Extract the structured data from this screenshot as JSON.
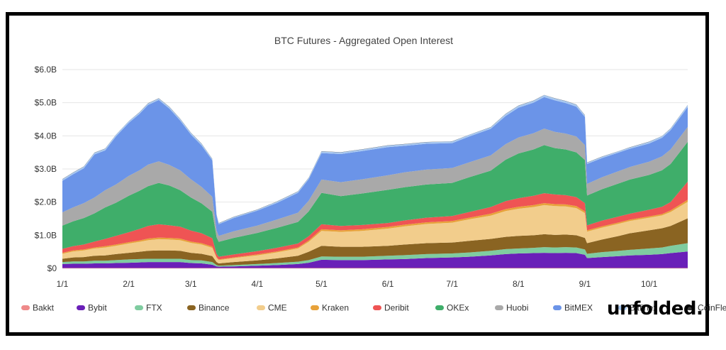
{
  "chart_data": {
    "type": "area",
    "title": "BTC Futures - Aggregated Open Interest",
    "xlabel": "",
    "ylabel": "",
    "stacked": true,
    "ylim": [
      0,
      6.2
    ],
    "y_unit": "billion USD",
    "y_ticks": [
      "$0",
      "$1.0B",
      "$2.0B",
      "$3.0B",
      "$4.0B",
      "$5.0B",
      "$6.0B"
    ],
    "y_tick_values": [
      0,
      1,
      2,
      3,
      4,
      5,
      6
    ],
    "x_ticks": [
      "1/1",
      "2/1",
      "3/1",
      "4/1",
      "5/1",
      "6/1",
      "7/1",
      "8/1",
      "9/1",
      "10/1"
    ],
    "x_tick_days": [
      0,
      31,
      60,
      91,
      121,
      152,
      182,
      213,
      244,
      274
    ],
    "x_days": [
      0,
      5,
      10,
      15,
      20,
      25,
      31,
      36,
      40,
      45,
      50,
      55,
      60,
      65,
      70,
      72,
      73,
      80,
      91,
      100,
      110,
      115,
      121,
      130,
      140,
      152,
      160,
      170,
      182,
      190,
      200,
      207,
      213,
      220,
      225,
      230,
      235,
      240,
      244,
      245,
      252,
      260,
      265,
      274,
      280,
      284,
      292
    ],
    "series": [
      {
        "name": "Bakkt",
        "color": "#ef8a8a",
        "values": [
          0.01,
          0.01,
          0.01,
          0.01,
          0.01,
          0.01,
          0.01,
          0.01,
          0.01,
          0.01,
          0.01,
          0.01,
          0.01,
          0.01,
          0.01,
          0.01,
          0.01,
          0.01,
          0.01,
          0.01,
          0.01,
          0.01,
          0.01,
          0.01,
          0.01,
          0.01,
          0.01,
          0.01,
          0.01,
          0.01,
          0.01,
          0.01,
          0.01,
          0.01,
          0.01,
          0.01,
          0.01,
          0.01,
          0.01,
          0.01,
          0.01,
          0.01,
          0.01,
          0.01,
          0.01,
          0.01,
          0.01
        ]
      },
      {
        "name": "Bybit",
        "color": "#6a1fb8",
        "values": [
          0.12,
          0.13,
          0.13,
          0.14,
          0.14,
          0.15,
          0.16,
          0.17,
          0.18,
          0.18,
          0.18,
          0.18,
          0.15,
          0.14,
          0.1,
          0.05,
          0.04,
          0.05,
          0.07,
          0.09,
          0.12,
          0.16,
          0.25,
          0.24,
          0.24,
          0.26,
          0.27,
          0.3,
          0.32,
          0.34,
          0.38,
          0.42,
          0.44,
          0.45,
          0.46,
          0.45,
          0.46,
          0.45,
          0.4,
          0.3,
          0.33,
          0.36,
          0.38,
          0.4,
          0.42,
          0.45,
          0.5
        ]
      },
      {
        "name": "FTX",
        "color": "#7fcca0",
        "values": [
          0.06,
          0.07,
          0.07,
          0.08,
          0.08,
          0.09,
          0.1,
          0.1,
          0.1,
          0.1,
          0.1,
          0.1,
          0.09,
          0.09,
          0.08,
          0.04,
          0.03,
          0.04,
          0.05,
          0.06,
          0.07,
          0.08,
          0.1,
          0.1,
          0.1,
          0.11,
          0.12,
          0.12,
          0.12,
          0.13,
          0.14,
          0.15,
          0.15,
          0.16,
          0.17,
          0.17,
          0.17,
          0.17,
          0.16,
          0.13,
          0.15,
          0.16,
          0.17,
          0.19,
          0.2,
          0.22,
          0.25
        ]
      },
      {
        "name": "Binance",
        "color": "#8a6422",
        "values": [
          0.1,
          0.12,
          0.13,
          0.15,
          0.16,
          0.18,
          0.2,
          0.22,
          0.24,
          0.25,
          0.25,
          0.24,
          0.22,
          0.2,
          0.18,
          0.09,
          0.07,
          0.09,
          0.11,
          0.14,
          0.18,
          0.25,
          0.32,
          0.3,
          0.3,
          0.3,
          0.32,
          0.33,
          0.33,
          0.35,
          0.36,
          0.37,
          0.38,
          0.38,
          0.39,
          0.38,
          0.38,
          0.37,
          0.35,
          0.32,
          0.38,
          0.45,
          0.5,
          0.55,
          0.58,
          0.6,
          0.75
        ]
      },
      {
        "name": "CME",
        "color": "#f2cd8c",
        "values": [
          0.15,
          0.18,
          0.2,
          0.22,
          0.24,
          0.25,
          0.28,
          0.3,
          0.32,
          0.34,
          0.33,
          0.32,
          0.3,
          0.28,
          0.25,
          0.13,
          0.1,
          0.12,
          0.15,
          0.18,
          0.22,
          0.3,
          0.45,
          0.45,
          0.48,
          0.52,
          0.55,
          0.58,
          0.6,
          0.65,
          0.7,
          0.78,
          0.82,
          0.85,
          0.88,
          0.87,
          0.85,
          0.82,
          0.75,
          0.35,
          0.36,
          0.37,
          0.37,
          0.38,
          0.39,
          0.42,
          0.5
        ]
      },
      {
        "name": "Kraken",
        "color": "#e8a23a",
        "values": [
          0.03,
          0.03,
          0.03,
          0.03,
          0.04,
          0.04,
          0.04,
          0.04,
          0.05,
          0.05,
          0.05,
          0.05,
          0.04,
          0.04,
          0.04,
          0.02,
          0.02,
          0.02,
          0.03,
          0.03,
          0.03,
          0.04,
          0.05,
          0.05,
          0.05,
          0.05,
          0.05,
          0.05,
          0.05,
          0.05,
          0.06,
          0.06,
          0.06,
          0.06,
          0.06,
          0.06,
          0.06,
          0.06,
          0.05,
          0.04,
          0.04,
          0.04,
          0.04,
          0.04,
          0.04,
          0.05,
          0.06
        ]
      },
      {
        "name": "Deribit",
        "color": "#ef5454",
        "values": [
          0.12,
          0.13,
          0.15,
          0.18,
          0.22,
          0.26,
          0.3,
          0.35,
          0.38,
          0.4,
          0.38,
          0.36,
          0.33,
          0.3,
          0.25,
          0.1,
          0.08,
          0.09,
          0.1,
          0.11,
          0.12,
          0.13,
          0.15,
          0.13,
          0.13,
          0.12,
          0.13,
          0.14,
          0.15,
          0.17,
          0.2,
          0.24,
          0.26,
          0.28,
          0.3,
          0.29,
          0.28,
          0.27,
          0.25,
          0.15,
          0.17,
          0.18,
          0.18,
          0.2,
          0.22,
          0.25,
          0.55
        ]
      },
      {
        "name": "OKEx",
        "color": "#3fae6a",
        "values": [
          0.7,
          0.75,
          0.8,
          0.85,
          0.95,
          1,
          1.1,
          1.15,
          1.2,
          1.25,
          1.2,
          1.1,
          1,
          0.9,
          0.8,
          0.5,
          0.45,
          0.5,
          0.55,
          0.6,
          0.65,
          0.75,
          0.95,
          0.9,
          0.95,
          1,
          1,
          1,
          1,
          1.05,
          1.1,
          1.25,
          1.35,
          1.4,
          1.45,
          1.4,
          1.38,
          1.35,
          1.3,
          0.9,
          0.95,
          1,
          1.03,
          1.05,
          1.1,
          1.15,
          1.2
        ]
      },
      {
        "name": "Huobi",
        "color": "#a9a9a9",
        "values": [
          0.4,
          0.42,
          0.45,
          0.48,
          0.52,
          0.55,
          0.6,
          0.62,
          0.65,
          0.65,
          0.62,
          0.6,
          0.55,
          0.5,
          0.45,
          0.2,
          0.18,
          0.2,
          0.22,
          0.25,
          0.28,
          0.32,
          0.4,
          0.42,
          0.43,
          0.44,
          0.45,
          0.45,
          0.45,
          0.45,
          0.46,
          0.47,
          0.48,
          0.49,
          0.5,
          0.49,
          0.48,
          0.48,
          0.45,
          0.35,
          0.36,
          0.37,
          0.38,
          0.4,
          0.42,
          0.44,
          0.45
        ]
      },
      {
        "name": "BitMEX",
        "color": "#6b94e8",
        "values": [
          0.95,
          1,
          1.05,
          1.3,
          1.2,
          1.45,
          1.6,
          1.7,
          1.8,
          1.85,
          1.7,
          1.5,
          1.35,
          1.25,
          1.1,
          0.45,
          0.35,
          0.4,
          0.45,
          0.5,
          0.6,
          0.65,
          0.8,
          0.85,
          0.85,
          0.85,
          0.8,
          0.78,
          0.75,
          0.78,
          0.8,
          0.85,
          0.9,
          0.92,
          0.95,
          0.95,
          0.92,
          0.9,
          0.85,
          0.6,
          0.58,
          0.56,
          0.55,
          0.55,
          0.56,
          0.58,
          0.6
        ]
      },
      {
        "name": "Bitfinex",
        "color": "#a8c8f0",
        "values": [
          0.05,
          0.05,
          0.05,
          0.05,
          0.05,
          0.05,
          0.05,
          0.05,
          0.05,
          0.05,
          0.05,
          0.05,
          0.05,
          0.05,
          0.04,
          0.03,
          0.03,
          0.03,
          0.03,
          0.04,
          0.04,
          0.04,
          0.05,
          0.05,
          0.05,
          0.05,
          0.05,
          0.05,
          0.05,
          0.05,
          0.05,
          0.06,
          0.06,
          0.06,
          0.06,
          0.06,
          0.06,
          0.06,
          0.05,
          0.04,
          0.04,
          0.04,
          0.04,
          0.05,
          0.05,
          0.05,
          0.06
        ]
      },
      {
        "name": "CoinFlex",
        "color": "#333333",
        "values": [
          0.005,
          0.005,
          0.005,
          0.005,
          0.005,
          0.005,
          0.005,
          0.005,
          0.005,
          0.005,
          0.005,
          0.005,
          0.005,
          0.005,
          0.005,
          0.005,
          0.005,
          0.005,
          0.005,
          0.005,
          0.005,
          0.005,
          0.005,
          0.005,
          0.005,
          0.005,
          0.005,
          0.005,
          0.005,
          0.005,
          0.005,
          0.005,
          0.005,
          0.005,
          0.005,
          0.005,
          0.005,
          0.005,
          0.005,
          0.005,
          0.005,
          0.005,
          0.005,
          0.005,
          0.005,
          0.005,
          0.005
        ]
      }
    ],
    "legend_position": "bottom",
    "grid": "horizontal"
  },
  "brand": {
    "text": "unfolded."
  }
}
